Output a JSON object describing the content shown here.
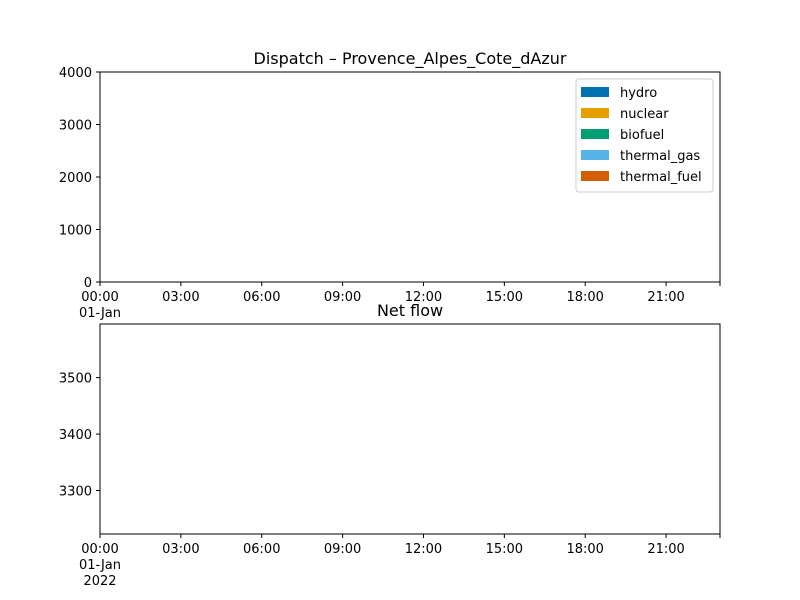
{
  "chart_data": [
    {
      "type": "area",
      "title": "Dispatch – Provence_Alpes_Cote_dAzur",
      "xlabel": "",
      "ylabel": "",
      "x_range": [
        "2022-01-01 00:00",
        "2022-01-01 23:00"
      ],
      "xticks": [
        {
          "value": "2022-01-01 00:00",
          "label": "00:00",
          "sublabel": "01-Jan"
        },
        {
          "value": "2022-01-01 03:00",
          "label": "03:00"
        },
        {
          "value": "2022-01-01 06:00",
          "label": "06:00"
        },
        {
          "value": "2022-01-01 09:00",
          "label": "09:00"
        },
        {
          "value": "2022-01-01 12:00",
          "label": "12:00"
        },
        {
          "value": "2022-01-01 15:00",
          "label": "15:00"
        },
        {
          "value": "2022-01-01 18:00",
          "label": "18:00"
        },
        {
          "value": "2022-01-01 21:00",
          "label": "21:00"
        },
        {
          "value": "2022-01-01 23:00",
          "label": ""
        }
      ],
      "ylim": [
        0,
        4000
      ],
      "yticks": [
        0,
        1000,
        2000,
        3000,
        4000
      ],
      "grid": false,
      "legend_position": "top-right",
      "series": [
        {
          "name": "hydro",
          "color": "#0072b2",
          "values": []
        },
        {
          "name": "nuclear",
          "color": "#e69f00",
          "values": []
        },
        {
          "name": "biofuel",
          "color": "#009e73",
          "values": []
        },
        {
          "name": "thermal_gas",
          "color": "#56b4e9",
          "values": []
        },
        {
          "name": "thermal_fuel",
          "color": "#d55e00",
          "values": []
        }
      ]
    },
    {
      "type": "line",
      "title": "Net flow",
      "xlabel": "",
      "ylabel": "",
      "x_range": [
        "2022-01-01 00:00",
        "2022-01-01 23:00"
      ],
      "xticks": [
        {
          "value": "2022-01-01 00:00",
          "label": "00:00",
          "sublabel": "01-Jan\n2022"
        },
        {
          "value": "2022-01-01 03:00",
          "label": "03:00"
        },
        {
          "value": "2022-01-01 06:00",
          "label": "06:00"
        },
        {
          "value": "2022-01-01 09:00",
          "label": "09:00"
        },
        {
          "value": "2022-01-01 12:00",
          "label": "12:00"
        },
        {
          "value": "2022-01-01 15:00",
          "label": "15:00"
        },
        {
          "value": "2022-01-01 18:00",
          "label": "18:00"
        },
        {
          "value": "2022-01-01 21:00",
          "label": "21:00"
        },
        {
          "value": "2022-01-01 23:00",
          "label": ""
        }
      ],
      "ylim": [
        3223,
        3595
      ],
      "yticks": [
        3300,
        3400,
        3500
      ],
      "grid": false,
      "series": []
    }
  ]
}
